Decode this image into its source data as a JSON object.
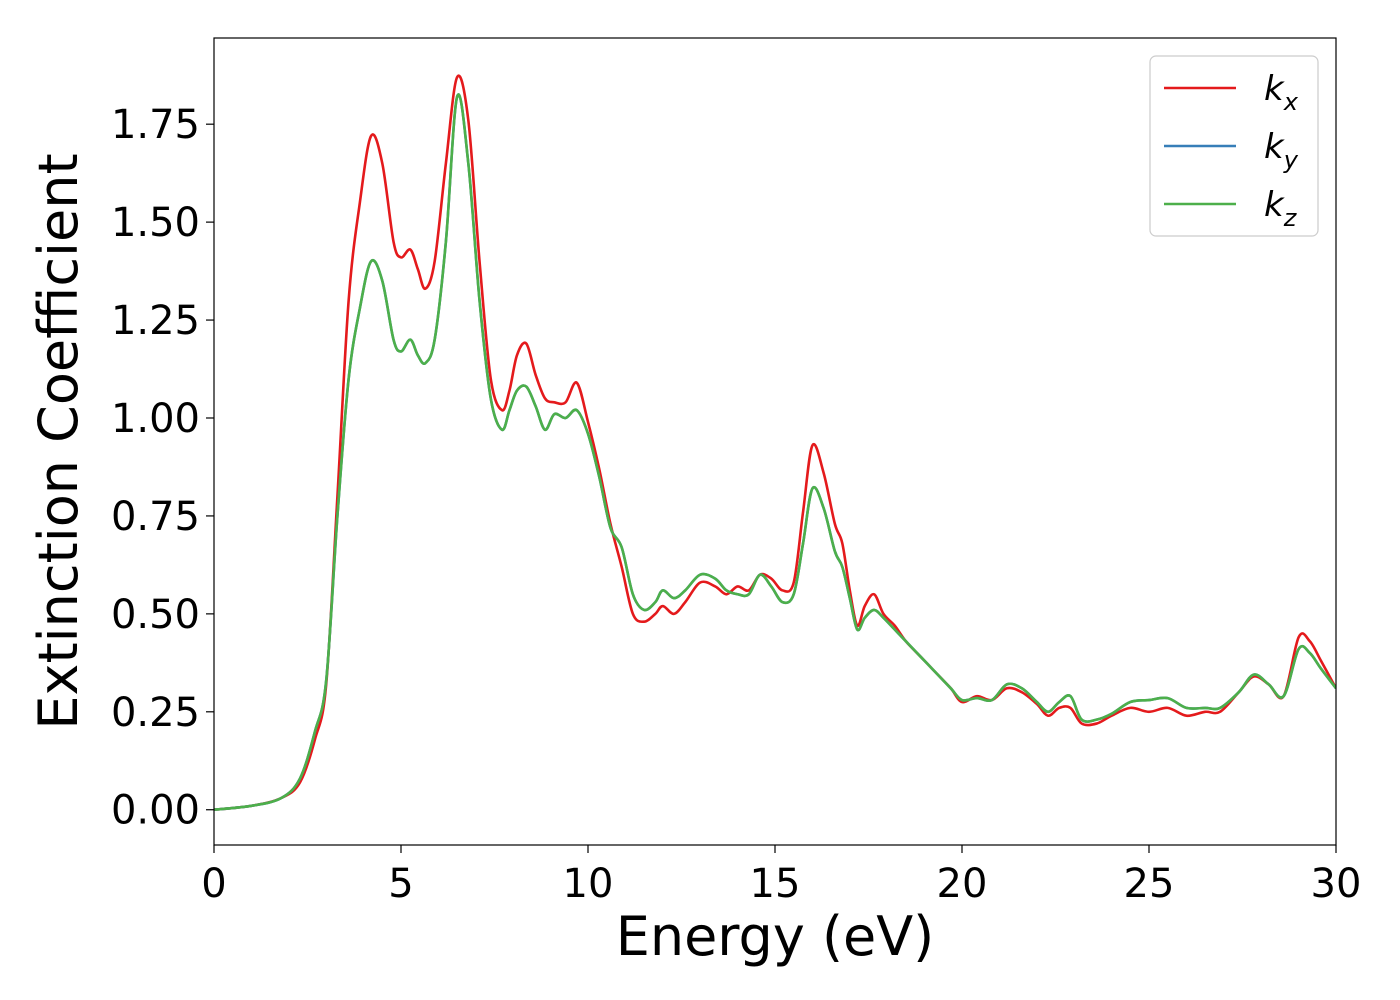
{
  "chart_data": {
    "type": "line",
    "xlabel": "Energy (eV)",
    "ylabel": "Extinction Coefficient",
    "xlim": [
      0,
      30
    ],
    "ylim": [
      -0.09,
      1.97
    ],
    "xticks": [
      0,
      5,
      10,
      15,
      20,
      25,
      30
    ],
    "xtick_labels": [
      "0",
      "5",
      "10",
      "15",
      "20",
      "25",
      "30"
    ],
    "yticks": [
      0.0,
      0.25,
      0.5,
      0.75,
      1.0,
      1.25,
      1.5,
      1.75
    ],
    "ytick_labels": [
      "0.00",
      "0.25",
      "0.50",
      "0.75",
      "1.00",
      "1.25",
      "1.50",
      "1.75"
    ],
    "grid": false,
    "legend_position": "top-right",
    "series": [
      {
        "name": "k_x",
        "label_base": "k",
        "label_sub": "x",
        "color": "#e41a1c",
        "x": [
          0,
          1,
          1.8,
          2.3,
          2.7,
          3.0,
          3.3,
          3.6,
          3.9,
          4.2,
          4.5,
          4.8,
          5.0,
          5.25,
          5.45,
          5.65,
          5.9,
          6.2,
          6.5,
          6.8,
          7.1,
          7.4,
          7.7,
          7.9,
          8.1,
          8.35,
          8.6,
          8.85,
          9.1,
          9.4,
          9.7,
          10.0,
          10.3,
          10.6,
          10.9,
          11.2,
          11.5,
          11.8,
          12.0,
          12.3,
          12.6,
          13.0,
          13.4,
          13.7,
          14.0,
          14.3,
          14.6,
          14.9,
          15.2,
          15.5,
          15.75,
          16.0,
          16.3,
          16.6,
          16.8,
          17.0,
          17.2,
          17.4,
          17.65,
          17.9,
          18.2,
          18.5,
          18.9,
          19.3,
          19.7,
          20.0,
          20.4,
          20.8,
          21.2,
          21.6,
          22.0,
          22.3,
          22.6,
          22.9,
          23.2,
          23.6,
          24.0,
          24.5,
          25.0,
          25.5,
          26.0,
          26.5,
          26.9,
          27.4,
          27.8,
          28.2,
          28.6,
          29.0,
          29.3,
          29.6,
          30.0
        ],
        "y": [
          0.0,
          0.01,
          0.03,
          0.07,
          0.18,
          0.32,
          0.8,
          1.3,
          1.55,
          1.72,
          1.65,
          1.45,
          1.41,
          1.43,
          1.38,
          1.33,
          1.4,
          1.65,
          1.87,
          1.76,
          1.4,
          1.1,
          1.02,
          1.07,
          1.16,
          1.19,
          1.11,
          1.05,
          1.04,
          1.04,
          1.09,
          0.99,
          0.87,
          0.73,
          0.62,
          0.5,
          0.48,
          0.5,
          0.52,
          0.5,
          0.53,
          0.58,
          0.57,
          0.55,
          0.57,
          0.56,
          0.6,
          0.59,
          0.56,
          0.58,
          0.76,
          0.93,
          0.86,
          0.73,
          0.68,
          0.56,
          0.47,
          0.52,
          0.55,
          0.5,
          0.47,
          0.43,
          0.39,
          0.35,
          0.31,
          0.275,
          0.29,
          0.28,
          0.31,
          0.3,
          0.27,
          0.24,
          0.26,
          0.26,
          0.22,
          0.22,
          0.24,
          0.26,
          0.25,
          0.26,
          0.24,
          0.25,
          0.25,
          0.3,
          0.34,
          0.32,
          0.29,
          0.44,
          0.43,
          0.38,
          0.31
        ]
      },
      {
        "name": "k_y",
        "label_base": "k",
        "label_sub": "y",
        "color": "#377eb8",
        "x": [
          0,
          1,
          1.8,
          2.3,
          2.7,
          3.0,
          3.3,
          3.6,
          3.9,
          4.2,
          4.5,
          4.8,
          5.0,
          5.25,
          5.45,
          5.65,
          5.9,
          6.2,
          6.5,
          6.8,
          7.1,
          7.4,
          7.7,
          7.9,
          8.1,
          8.35,
          8.6,
          8.85,
          9.1,
          9.4,
          9.7,
          10.0,
          10.3,
          10.6,
          10.9,
          11.2,
          11.5,
          11.8,
          12.0,
          12.3,
          12.6,
          13.0,
          13.4,
          13.7,
          14.0,
          14.3,
          14.6,
          14.9,
          15.2,
          15.5,
          15.75,
          16.0,
          16.3,
          16.6,
          16.8,
          17.0,
          17.2,
          17.4,
          17.65,
          17.9,
          18.2,
          18.5,
          18.9,
          19.3,
          19.7,
          20.0,
          20.4,
          20.8,
          21.2,
          21.6,
          22.0,
          22.3,
          22.6,
          22.9,
          23.2,
          23.6,
          24.0,
          24.5,
          25.0,
          25.5,
          26.0,
          26.5,
          26.9,
          27.4,
          27.8,
          28.2,
          28.6,
          29.0,
          29.3,
          29.6,
          30.0
        ],
        "y": [
          0.0,
          0.01,
          0.03,
          0.08,
          0.2,
          0.33,
          0.75,
          1.1,
          1.28,
          1.4,
          1.35,
          1.2,
          1.17,
          1.2,
          1.16,
          1.14,
          1.2,
          1.45,
          1.82,
          1.65,
          1.3,
          1.05,
          0.97,
          1.02,
          1.07,
          1.08,
          1.03,
          0.97,
          1.01,
          1.0,
          1.02,
          0.96,
          0.85,
          0.72,
          0.67,
          0.55,
          0.51,
          0.53,
          0.56,
          0.54,
          0.56,
          0.6,
          0.59,
          0.56,
          0.55,
          0.55,
          0.6,
          0.57,
          0.53,
          0.55,
          0.68,
          0.82,
          0.77,
          0.66,
          0.62,
          0.54,
          0.46,
          0.49,
          0.51,
          0.49,
          0.46,
          0.43,
          0.39,
          0.35,
          0.31,
          0.28,
          0.285,
          0.28,
          0.32,
          0.31,
          0.275,
          0.25,
          0.275,
          0.29,
          0.23,
          0.23,
          0.245,
          0.275,
          0.28,
          0.285,
          0.26,
          0.26,
          0.26,
          0.3,
          0.345,
          0.32,
          0.29,
          0.41,
          0.4,
          0.36,
          0.31
        ]
      },
      {
        "name": "k_z",
        "label_base": "k",
        "label_sub": "z",
        "color": "#4daf4a",
        "x": [
          0,
          1,
          1.8,
          2.3,
          2.7,
          3.0,
          3.3,
          3.6,
          3.9,
          4.2,
          4.5,
          4.8,
          5.0,
          5.25,
          5.45,
          5.65,
          5.9,
          6.2,
          6.5,
          6.8,
          7.1,
          7.4,
          7.7,
          7.9,
          8.1,
          8.35,
          8.6,
          8.85,
          9.1,
          9.4,
          9.7,
          10.0,
          10.3,
          10.6,
          10.9,
          11.2,
          11.5,
          11.8,
          12.0,
          12.3,
          12.6,
          13.0,
          13.4,
          13.7,
          14.0,
          14.3,
          14.6,
          14.9,
          15.2,
          15.5,
          15.75,
          16.0,
          16.3,
          16.6,
          16.8,
          17.0,
          17.2,
          17.4,
          17.65,
          17.9,
          18.2,
          18.5,
          18.9,
          19.3,
          19.7,
          20.0,
          20.4,
          20.8,
          21.2,
          21.6,
          22.0,
          22.3,
          22.6,
          22.9,
          23.2,
          23.6,
          24.0,
          24.5,
          25.0,
          25.5,
          26.0,
          26.5,
          26.9,
          27.4,
          27.8,
          28.2,
          28.6,
          29.0,
          29.3,
          29.6,
          30.0
        ],
        "y": [
          0.0,
          0.01,
          0.03,
          0.08,
          0.2,
          0.33,
          0.75,
          1.1,
          1.28,
          1.4,
          1.35,
          1.2,
          1.17,
          1.2,
          1.16,
          1.14,
          1.2,
          1.45,
          1.82,
          1.65,
          1.3,
          1.05,
          0.97,
          1.02,
          1.07,
          1.08,
          1.03,
          0.97,
          1.01,
          1.0,
          1.02,
          0.96,
          0.85,
          0.72,
          0.67,
          0.55,
          0.51,
          0.53,
          0.56,
          0.54,
          0.56,
          0.6,
          0.59,
          0.56,
          0.55,
          0.55,
          0.6,
          0.57,
          0.53,
          0.55,
          0.68,
          0.82,
          0.77,
          0.66,
          0.62,
          0.54,
          0.46,
          0.49,
          0.51,
          0.49,
          0.46,
          0.43,
          0.39,
          0.35,
          0.31,
          0.28,
          0.285,
          0.28,
          0.32,
          0.31,
          0.275,
          0.25,
          0.275,
          0.29,
          0.23,
          0.23,
          0.245,
          0.275,
          0.28,
          0.285,
          0.26,
          0.26,
          0.26,
          0.3,
          0.345,
          0.32,
          0.29,
          0.41,
          0.4,
          0.36,
          0.31
        ]
      }
    ]
  }
}
